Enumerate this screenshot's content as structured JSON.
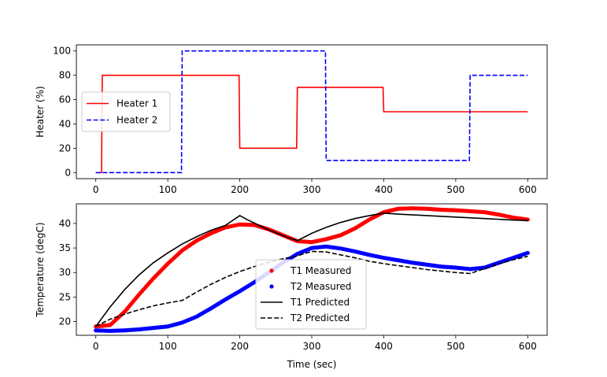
{
  "chart_data": [
    {
      "type": "line",
      "ylabel": "Heater (%)",
      "xlabel": "",
      "xlim": [
        -27,
        627
      ],
      "ylim": [
        -5,
        105
      ],
      "x_ticks": [
        0,
        100,
        200,
        300,
        400,
        500,
        600
      ],
      "y_ticks": [
        0,
        20,
        40,
        60,
        80,
        100
      ],
      "legend_position": "center-left",
      "series": [
        {
          "name": "Heater 1",
          "color": "#ff0000",
          "style": "solid",
          "points": [
            [
              0,
              0
            ],
            [
              8,
              0
            ],
            [
              9,
              80
            ],
            [
              199,
              80
            ],
            [
              200,
              20
            ],
            [
              279,
              20
            ],
            [
              280,
              70
            ],
            [
              399,
              70
            ],
            [
              400,
              50
            ],
            [
              600,
              50
            ]
          ]
        },
        {
          "name": "Heater 2",
          "color": "#0000ff",
          "style": "dashed",
          "points": [
            [
              0,
              0
            ],
            [
              119,
              0
            ],
            [
              120,
              100
            ],
            [
              319,
              100
            ],
            [
              320,
              10
            ],
            [
              519,
              10
            ],
            [
              520,
              80
            ],
            [
              600,
              80
            ]
          ]
        }
      ]
    },
    {
      "type": "line",
      "ylabel": "Temperature (degC)",
      "xlabel": "Time (sec)",
      "xlim": [
        -27,
        627
      ],
      "ylim": [
        17.2,
        44.0
      ],
      "x_ticks": [
        0,
        100,
        200,
        300,
        400,
        500,
        600
      ],
      "y_ticks": [
        20,
        25,
        30,
        35,
        40
      ],
      "legend_position": "bottom-center",
      "series": [
        {
          "name": "T1 Measured",
          "color": "#ff0000",
          "style": "markers",
          "points": [
            [
              0,
              19.0
            ],
            [
              20,
              19.3
            ],
            [
              40,
              22.0
            ],
            [
              60,
              25.5
            ],
            [
              80,
              28.8
            ],
            [
              100,
              31.8
            ],
            [
              120,
              34.5
            ],
            [
              140,
              36.5
            ],
            [
              160,
              38.0
            ],
            [
              180,
              39.2
            ],
            [
              200,
              39.8
            ],
            [
              220,
              39.7
            ],
            [
              240,
              38.8
            ],
            [
              260,
              37.6
            ],
            [
              280,
              36.4
            ],
            [
              300,
              36.2
            ],
            [
              320,
              36.8
            ],
            [
              340,
              37.6
            ],
            [
              360,
              39.0
            ],
            [
              380,
              40.8
            ],
            [
              400,
              42.3
            ],
            [
              420,
              43.0
            ],
            [
              440,
              43.1
            ],
            [
              460,
              43.0
            ],
            [
              480,
              42.8
            ],
            [
              500,
              42.7
            ],
            [
              520,
              42.5
            ],
            [
              540,
              42.3
            ],
            [
              560,
              41.8
            ],
            [
              580,
              41.2
            ],
            [
              600,
              40.8
            ]
          ]
        },
        {
          "name": "T2 Measured",
          "color": "#0000ff",
          "style": "markers",
          "points": [
            [
              0,
              18.2
            ],
            [
              20,
              18.1
            ],
            [
              40,
              18.2
            ],
            [
              60,
              18.4
            ],
            [
              80,
              18.7
            ],
            [
              100,
              19.0
            ],
            [
              120,
              19.8
            ],
            [
              140,
              21.0
            ],
            [
              160,
              22.7
            ],
            [
              180,
              24.5
            ],
            [
              200,
              26.2
            ],
            [
              220,
              28.0
            ],
            [
              240,
              30.0
            ],
            [
              260,
              32.0
            ],
            [
              280,
              33.8
            ],
            [
              300,
              35.0
            ],
            [
              320,
              35.3
            ],
            [
              340,
              34.9
            ],
            [
              360,
              34.3
            ],
            [
              380,
              33.6
            ],
            [
              400,
              33.0
            ],
            [
              420,
              32.5
            ],
            [
              440,
              32.0
            ],
            [
              460,
              31.6
            ],
            [
              480,
              31.2
            ],
            [
              500,
              31.0
            ],
            [
              520,
              30.7
            ],
            [
              540,
              31.0
            ],
            [
              560,
              32.0
            ],
            [
              580,
              33.0
            ],
            [
              600,
              34.0
            ]
          ]
        },
        {
          "name": "T1 Predicted",
          "color": "#000000",
          "style": "solid",
          "points": [
            [
              0,
              19.0
            ],
            [
              20,
              23.0
            ],
            [
              40,
              26.5
            ],
            [
              60,
              29.5
            ],
            [
              80,
              32.0
            ],
            [
              100,
              34.0
            ],
            [
              120,
              35.8
            ],
            [
              140,
              37.3
            ],
            [
              160,
              38.6
            ],
            [
              180,
              39.6
            ],
            [
              200,
              41.6
            ],
            [
              210,
              40.8
            ],
            [
              240,
              38.7
            ],
            [
              260,
              37.5
            ],
            [
              280,
              36.5
            ],
            [
              300,
              38.0
            ],
            [
              320,
              39.2
            ],
            [
              340,
              40.2
            ],
            [
              360,
              41.0
            ],
            [
              380,
              41.6
            ],
            [
              400,
              42.1
            ],
            [
              420,
              41.9
            ],
            [
              460,
              41.6
            ],
            [
              500,
              41.3
            ],
            [
              540,
              41.0
            ],
            [
              580,
              40.7
            ],
            [
              600,
              40.6
            ]
          ]
        },
        {
          "name": "T2 Predicted",
          "color": "#000000",
          "style": "dashed",
          "points": [
            [
              0,
              19.0
            ],
            [
              20,
              20.5
            ],
            [
              40,
              21.5
            ],
            [
              60,
              22.4
            ],
            [
              80,
              23.2
            ],
            [
              100,
              23.8
            ],
            [
              120,
              24.3
            ],
            [
              140,
              26.0
            ],
            [
              160,
              27.6
            ],
            [
              180,
              29.0
            ],
            [
              200,
              30.2
            ],
            [
              220,
              31.2
            ],
            [
              240,
              32.1
            ],
            [
              260,
              32.8
            ],
            [
              280,
              33.4
            ],
            [
              300,
              34.3
            ],
            [
              320,
              34.2
            ],
            [
              340,
              33.6
            ],
            [
              360,
              33.0
            ],
            [
              380,
              32.3
            ],
            [
              400,
              31.8
            ],
            [
              420,
              31.4
            ],
            [
              440,
              31.0
            ],
            [
              460,
              30.6
            ],
            [
              480,
              30.3
            ],
            [
              500,
              30.0
            ],
            [
              520,
              29.8
            ],
            [
              540,
              30.8
            ],
            [
              560,
              31.8
            ],
            [
              580,
              32.6
            ],
            [
              600,
              33.3
            ]
          ]
        }
      ]
    }
  ]
}
